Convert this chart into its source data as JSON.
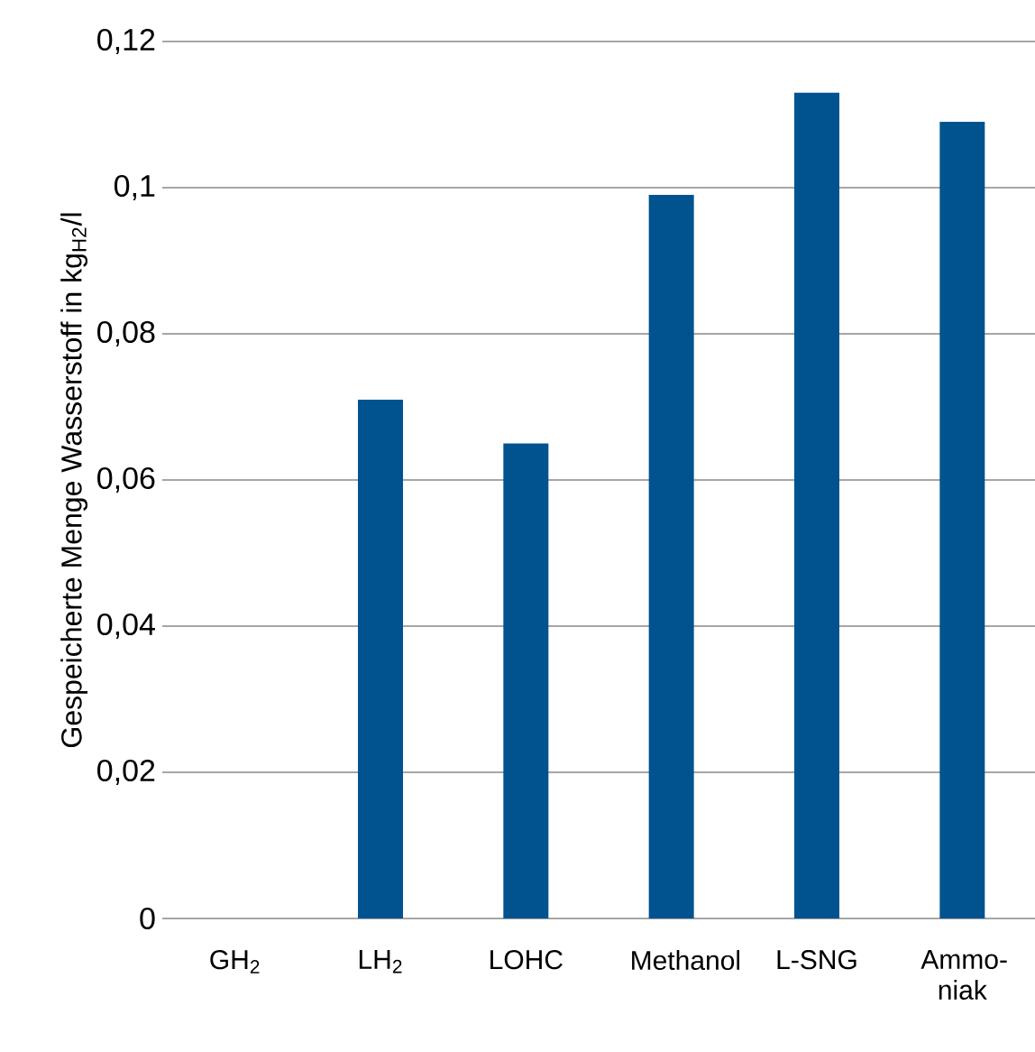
{
  "chart_data": {
    "type": "bar",
    "ylabel": "Gespeicherte Menge Wasserstoff in kg$_{H2}$/l",
    "categories": [
      "GH$_{2}$",
      "LH$_{2}$",
      "LOHC",
      "Methanol",
      "L-SNG",
      "Ammo-niak"
    ],
    "values": [
      0,
      0.071,
      0.065,
      0.099,
      0.113,
      0.109
    ],
    "color": "#00538f",
    "ylim": [
      0,
      0.12
    ],
    "yticks": [
      {
        "value": 0,
        "label": "0"
      },
      {
        "value": 0.02,
        "label": "0,02"
      },
      {
        "value": 0.04,
        "label": "0,04"
      },
      {
        "value": 0.06,
        "label": "0,06"
      },
      {
        "value": 0.08,
        "label": "0,08"
      },
      {
        "value": 0.1,
        "label": "0,1"
      },
      {
        "value": 0.12,
        "label": "0,12"
      }
    ],
    "grid": "y"
  }
}
